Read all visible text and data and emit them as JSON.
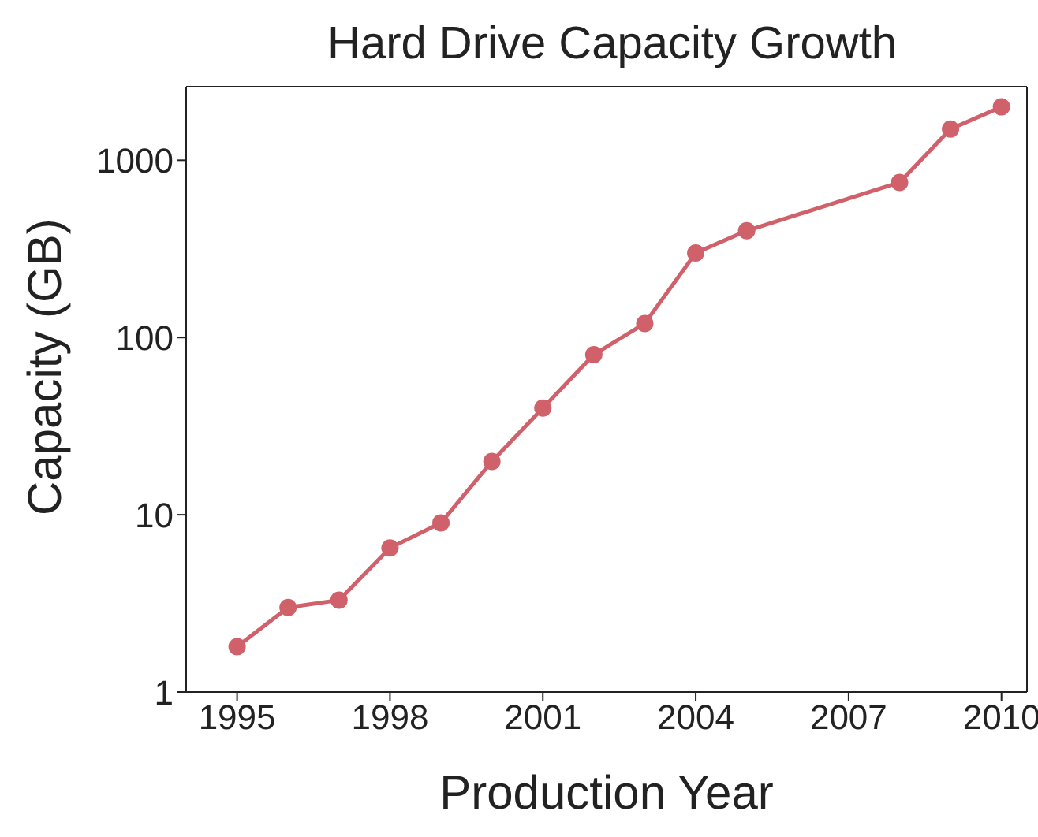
{
  "chart_data": {
    "type": "line",
    "title": "Hard Drive Capacity Growth",
    "xlabel": "Production Year",
    "ylabel": "Capacity (GB)",
    "x": [
      1995,
      1996,
      1997,
      1998,
      1999,
      2000,
      2001,
      2002,
      2003,
      2004,
      2005,
      2008,
      2009,
      2010
    ],
    "series": [
      {
        "color": "#d0606a",
        "values": [
          1.8,
          3,
          3.3,
          6.5,
          9,
          20,
          40,
          80,
          120,
          300,
          400,
          750,
          1500,
          2000
        ]
      }
    ],
    "xlim": [
      1994,
      2010.5
    ],
    "xticks": [
      1995,
      1998,
      2001,
      2004,
      2007,
      2010
    ],
    "ylim": [
      1,
      2600
    ],
    "yticks": [
      1,
      10,
      100,
      1000
    ],
    "log": "y",
    "grid": false,
    "legend": false,
    "marker": "circle",
    "line_style": "solid"
  }
}
